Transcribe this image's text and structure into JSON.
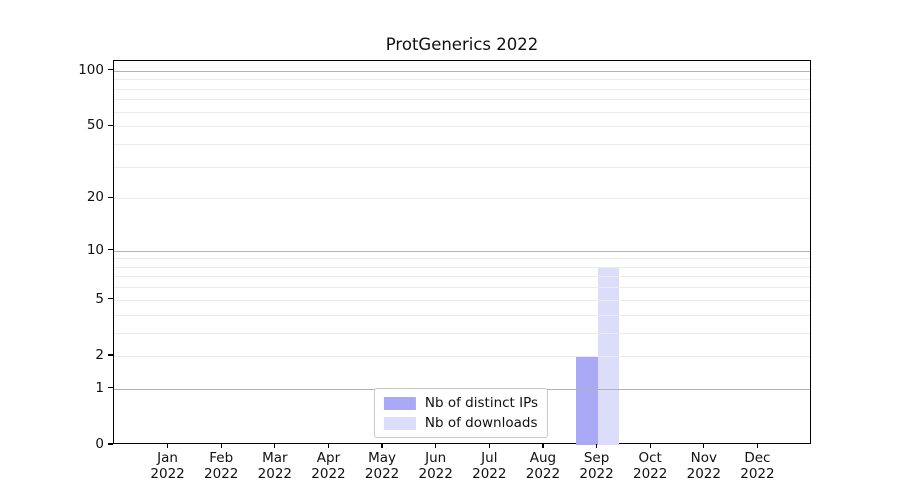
{
  "chart_data": {
    "type": "bar",
    "title": "ProtGenerics 2022",
    "months": [
      "Jan",
      "Feb",
      "Mar",
      "Apr",
      "May",
      "Jun",
      "Jul",
      "Aug",
      "Sep",
      "Oct",
      "Nov",
      "Dec"
    ],
    "year": "2022",
    "series": [
      {
        "name": "Nb of distinct IPs",
        "color": "#a9a9f5",
        "values": [
          0,
          0,
          0,
          0,
          0,
          0,
          0,
          0,
          2,
          0,
          0,
          0
        ]
      },
      {
        "name": "Nb of downloads",
        "color": "#dcdcfb",
        "values": [
          0,
          0,
          0,
          0,
          0,
          0,
          0,
          0,
          8,
          0,
          0,
          0
        ]
      }
    ],
    "yscale": "log1p",
    "ylim": [
      0,
      113
    ],
    "ytick_values": [
      0,
      1,
      2,
      5,
      10,
      20,
      50,
      100
    ],
    "grid_major_values": [
      1,
      10,
      100
    ],
    "grid_minor_values": [
      2,
      3,
      4,
      5,
      6,
      7,
      8,
      9,
      20,
      30,
      40,
      50,
      60,
      70,
      80,
      90
    ],
    "legend_position": "lower center",
    "colors": {
      "grid_major": "#b3b3b3",
      "grid_minor": "#ebebeb",
      "axis": "#000000",
      "text": "#111111",
      "legend_border": "#c9c9c9",
      "background": "#ffffff"
    }
  }
}
